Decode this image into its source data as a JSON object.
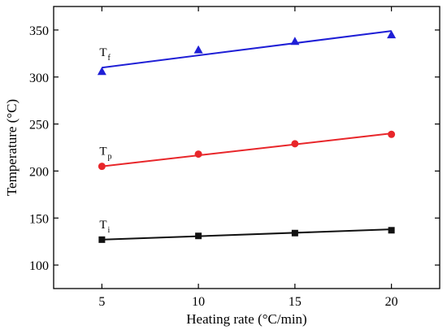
{
  "chart_data": {
    "type": "scatter",
    "title": "",
    "xlabel": "Heating rate (°C/min)",
    "ylabel": "Temperature (°C)",
    "xlim": [
      2.5,
      22.5
    ],
    "ylim": [
      75,
      375
    ],
    "xticks": [
      5,
      10,
      15,
      20
    ],
    "yticks": [
      100,
      150,
      200,
      250,
      300,
      350
    ],
    "x": [
      5,
      10,
      15,
      20
    ],
    "grid": false,
    "series": [
      {
        "name": "Tf",
        "label_main": "T",
        "label_sub": "f",
        "color": "#1f1fd6",
        "marker": "triangle",
        "values": [
          306,
          329,
          338,
          345
        ],
        "fit": [
          310,
          349
        ]
      },
      {
        "name": "Tp",
        "label_main": "T",
        "label_sub": "p",
        "color": "#e8262a",
        "marker": "circle",
        "values": [
          205,
          218,
          229,
          239
        ],
        "fit": [
          205,
          240
        ]
      },
      {
        "name": "Ti",
        "label_main": "T",
        "label_sub": "i",
        "color": "#111111",
        "marker": "square",
        "values": [
          127,
          131,
          134,
          137
        ],
        "fit": [
          127,
          138
        ]
      }
    ]
  }
}
